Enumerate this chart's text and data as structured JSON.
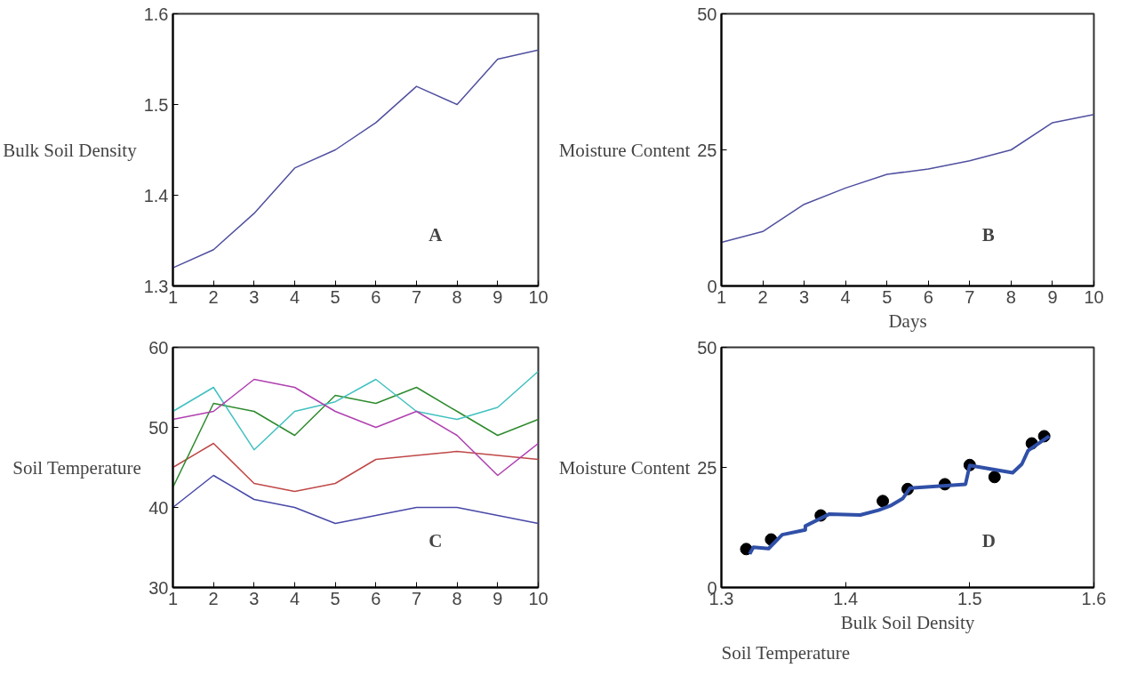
{
  "chart_data": [
    {
      "type": "line",
      "title": "A",
      "ylabel": "Bulk Soil Density",
      "x": [
        1,
        2,
        3,
        4,
        5,
        6,
        7,
        8,
        9,
        10
      ],
      "xlim": [
        1,
        10
      ],
      "xticks": [
        1,
        2,
        3,
        4,
        5,
        6,
        7,
        8,
        9,
        10
      ],
      "ylim": [
        1.3,
        1.6
      ],
      "yticks": [
        1.3,
        1.4,
        1.5,
        1.6
      ],
      "grid": false,
      "series": [
        {
          "color": "#5050a0",
          "values": [
            1.32,
            1.34,
            1.38,
            1.43,
            1.45,
            1.48,
            1.52,
            1.5,
            1.55,
            1.56
          ]
        }
      ]
    },
    {
      "type": "line",
      "title": "B",
      "ylabel": "Moisture Content",
      "xlabel": "Days",
      "x": [
        1,
        2,
        3,
        4,
        5,
        6,
        7,
        8,
        9,
        10
      ],
      "xlim": [
        1,
        10
      ],
      "xticks": [
        1,
        2,
        3,
        4,
        5,
        6,
        7,
        8,
        9,
        10
      ],
      "ylim": [
        0,
        50
      ],
      "yticks": [
        0,
        25,
        50
      ],
      "grid": false,
      "series": [
        {
          "color": "#5050a0",
          "values": [
            8,
            10,
            15,
            18,
            20.5,
            21.5,
            23,
            25,
            30,
            31.5
          ]
        }
      ]
    },
    {
      "type": "line",
      "title": "C",
      "ylabel": "Soil Temperature",
      "x": [
        1,
        2,
        3,
        4,
        5,
        6,
        7,
        8,
        9,
        10
      ],
      "xlim": [
        1,
        10
      ],
      "xticks": [
        1,
        2,
        3,
        4,
        5,
        6,
        7,
        8,
        9,
        10
      ],
      "ylim": [
        30,
        60
      ],
      "yticks": [
        30,
        40,
        50,
        60
      ],
      "grid": false,
      "series": [
        {
          "color": "#4848a8",
          "values": [
            40,
            44,
            41,
            40,
            38,
            39,
            40,
            40,
            39,
            38
          ]
        },
        {
          "color": "#c04848",
          "values": [
            45,
            48,
            43,
            42,
            43,
            46,
            46.5,
            47,
            46.5,
            46
          ]
        },
        {
          "color": "#2e8b2e",
          "values": [
            42.5,
            53,
            52,
            49,
            54,
            53,
            55,
            52,
            49,
            51
          ]
        },
        {
          "color": "#40c0c0",
          "values": [
            52,
            55,
            47.2,
            52,
            53.2,
            56,
            52,
            51,
            52.5,
            57
          ]
        },
        {
          "color": "#b040b0",
          "values": [
            51,
            52,
            56,
            55,
            52,
            50,
            52,
            49,
            44,
            48
          ]
        }
      ]
    },
    {
      "type": "scatter",
      "title": "D",
      "ylabel": "Moisture Content",
      "xlabel": "Bulk Soil Density",
      "annotations": [
        "Soil Temperature"
      ],
      "xlim": [
        1.3,
        1.6
      ],
      "xticks": [
        1.3,
        1.4,
        1.5,
        1.6
      ],
      "ylim": [
        0,
        50
      ],
      "yticks": [
        0,
        25,
        50
      ],
      "grid": false,
      "series": [
        {
          "type": "scatter",
          "marker": "circle",
          "color": "#000000",
          "x": [
            1.32,
            1.34,
            1.38,
            1.43,
            1.45,
            1.48,
            1.52,
            1.5,
            1.55,
            1.56
          ],
          "values": [
            8,
            10,
            15,
            18,
            20.5,
            21.5,
            23,
            25.5,
            30,
            31.5
          ]
        },
        {
          "type": "line",
          "color": "#3050a8",
          "x": [
            1.3228,
            1.3258,
            1.338,
            1.349,
            1.3676,
            1.3676,
            1.387,
            1.4118,
            1.4265,
            1.436,
            1.446,
            1.452,
            1.4966,
            1.5,
            1.5346,
            1.542,
            1.547,
            1.564
          ],
          "values": [
            7,
            8.4,
            8.1,
            11,
            12,
            12.8,
            15.3,
            15.1,
            16.1,
            17,
            18.5,
            20.7,
            21.5,
            25.4,
            23.9,
            25.7,
            28.5,
            31.5
          ]
        }
      ]
    }
  ]
}
